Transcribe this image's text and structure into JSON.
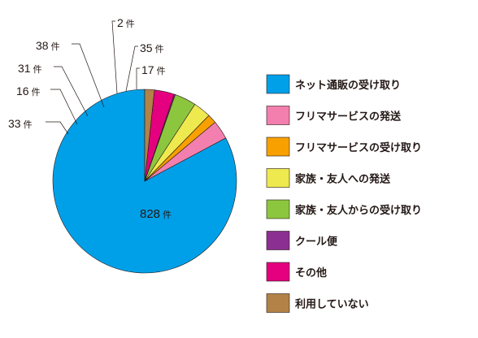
{
  "unit": "件",
  "chart_data": {
    "type": "pie",
    "categories": [
      "ネット通販の受け取り",
      "フリマサービスの発送",
      "フリマサービスの受け取り",
      "家族・友人への発送",
      "家族・友人からの受け取り",
      "クール便",
      "その他",
      "利用していない"
    ],
    "values": [
      828,
      33,
      16,
      31,
      38,
      2,
      35,
      17
    ],
    "colors": [
      "#00a0e9",
      "#f27fad",
      "#f7a000",
      "#eee94f",
      "#8cc63f",
      "#8c2f92",
      "#e4007f",
      "#b28247"
    ],
    "legend_position": "right",
    "start_angle": "12 o'clock",
    "direction": "counterclockwise"
  }
}
